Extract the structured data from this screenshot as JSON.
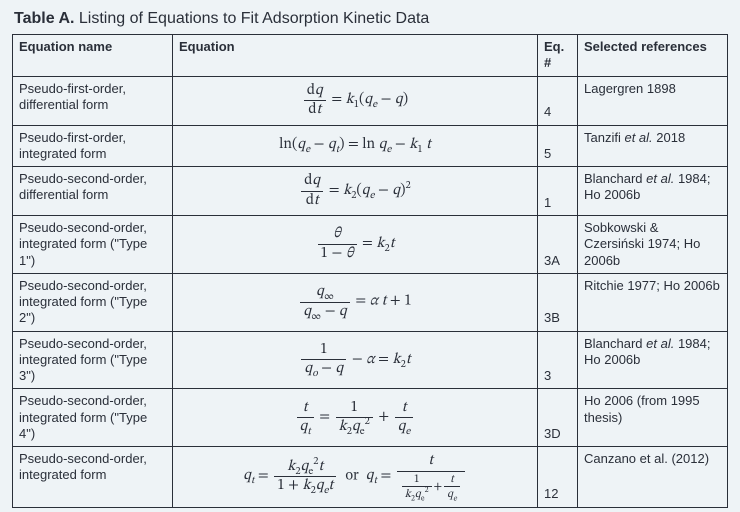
{
  "title_prefix": "Table A.",
  "title_rest": "  Listing of Equations to Fit Adsorption Kinetic Data",
  "columns": [
    "Equation name",
    "Equation",
    "Eq. #",
    "Selected references"
  ],
  "rows": [
    {
      "name": "Pseudo-first-order, differential form",
      "eq_html": "<span class='frac'><span class='num'>d<span class='italic'>q</span></span><span class='den'>d<span class='italic'>t</span></span></span><span class='mid'> = <span class='italic'>k</span><span class='sub'>1</span>(<span class='italic'>q<span class='sub'>e</span></span> − <span class='italic'>q</span>)</span>",
      "num": "4",
      "ref": "Lagergren 1898"
    },
    {
      "name": "Pseudo-first-order, integrated form",
      "eq_html": "ln(<span class='italic'>q<span class='sub'>e</span></span> − <span class='italic'>q<span class='sub'>t</span></span>) = ln <span class='italic'>q<span class='sub'>e</span></span> − <span class='italic'>k</span><span class='sub'>1</span> <span class='italic'>t</span>",
      "num": "5",
      "ref_html": "Tanzifi <span class='italic'>et al.</span> 2018"
    },
    {
      "name": "Pseudo-second-order, differential form",
      "eq_html": "<span class='frac'><span class='num'>d<span class='italic'>q</span></span><span class='den'>d<span class='italic'>t</span></span></span><span class='mid'> = <span class='italic'>k</span><span class='sub'>2</span>(<span class='italic'>q<span class='sub'>e</span></span> − <span class='italic'>q</span>)<span class='sup'>2</span></span>",
      "num": "1",
      "ref_html": "Blanchard <span class='italic'>et al.</span> 1984; Ho 2006b"
    },
    {
      "name": "Pseudo-second-order, integrated form (\"Type 1\")",
      "eq_html": "<span class='frac'><span class='num'><span class='italic'>θ</span></span><span class='den'>1 − <span class='italic'>θ</span></span></span><span class='mid'> = <span class='italic'>k</span><span class='sub'>2</span><span class='italic'>t</span></span>",
      "num": "3A",
      "ref": "Sobkowski & Czersiński 1974; Ho 2006b"
    },
    {
      "name": "Pseudo-second-order, integrated form (\"Type 2\")",
      "eq_html": "<span class='frac'><span class='num'><span class='italic'>q</span><span class='sub'>∞</span></span><span class='den'><span class='italic'>q</span><span class='sub'>∞</span> − <span class='italic'>q</span></span></span><span class='mid'> = <span class='italic'>α t</span> + 1</span>",
      "num": "3B",
      "ref": "Ritchie 1977; Ho 2006b"
    },
    {
      "name": "Pseudo-second-order, integrated form (\"Type 3\")",
      "eq_html": "<span class='frac'><span class='num'>1</span><span class='den'><span class='italic'>q<span class='sub'>o</span></span> − <span class='italic'>q</span></span></span><span class='mid'> − <span class='italic'>α</span> = <span class='italic'>k</span><span class='sub'>2</span><span class='italic'>t</span></span>",
      "num": "3",
      "ref_html": "Blanchard <span class='italic'>et al.</span> 1984; Ho 2006b"
    },
    {
      "name": "Pseudo-second-order, integrated form (\"Type 4\")",
      "eq_html": "<span class='frac'><span class='num'><span class='italic'>t</span></span><span class='den'><span class='italic'>q<span class='sub'>t</span></span></span></span><span class='mid'> = </span><span class='frac'><span class='num'>1</span><span class='den'><span class='italic'>k</span><span class='sub'>2</span><span class='italic'>q</span><span class='sub'>e</span><span class='sup'>2</span></span></span><span class='mid'> + </span><span class='frac'><span class='num'><span class='italic'>t</span></span><span class='den'><span class='italic'>q<span class='sub'>e</span></span></span></span>",
      "num": "3D",
      "ref": "Ho 2006 (from 1995 thesis)"
    },
    {
      "name": "Pseudo-second-order, integrated form",
      "eq_html": "<span class='italic mid'>q<span class='sub'>t</span></span><span class='mid'> = </span><span class='frac'><span class='num'><span class='italic'>k</span><span class='sub'>2</span><span class='italic'>q</span><span class='sub'>e</span><span class='sup'>2</span><span class='italic'>t</span></span><span class='den'>1 + <span class='italic'>k</span><span class='sub'>2</span><span class='italic'>q<span class='sub'>e</span>t</span></span></span><span class='mid'> &nbsp;or&nbsp; <span class='italic'>q<span class='sub'>t</span></span> = </span><span class='frac'><span class='num'><span class='italic'>t</span></span><span class='den' style=\"font-size:0.8em\"><span class='frac' style=\"font-size:0.95em\"><span class='num'>1</span><span class='den'><span class='italic'>k</span><span class='sub'>2</span><span class='italic'>q</span><span class='sub'>e</span><span class='sup'>2</span></span></span>+<span class='frac' style=\"font-size:0.95em\"><span class='num'><span class='italic'>t</span></span><span class='den'><span class='italic'>q<span class='sub'>e</span></span></span></span></span></span>",
      "num": "12",
      "ref": "Canzano et al. (2012)"
    }
  ],
  "colors": {
    "background": "#eef3f6",
    "text": "#2a2f39",
    "border": "#2a2f39"
  }
}
